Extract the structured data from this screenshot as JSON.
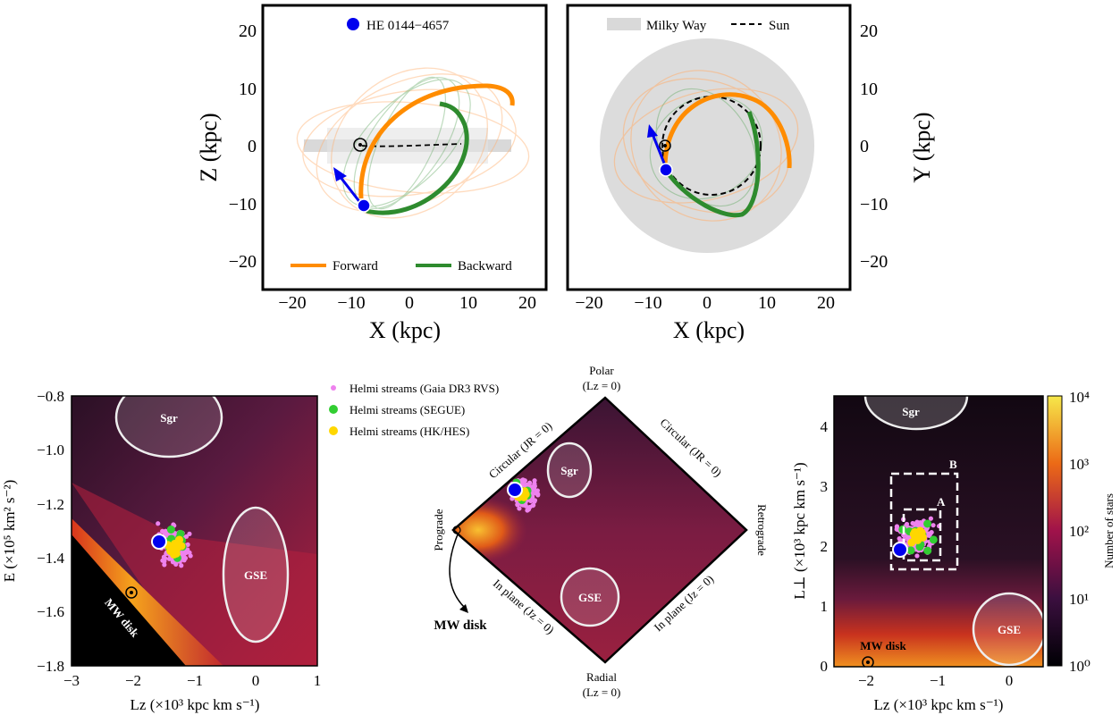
{
  "chart_data": [
    {
      "type": "line",
      "panel": "orbit-xz",
      "xlabel": "X (kpc)",
      "ylabel": "Z (kpc)",
      "xlim": [
        -25,
        25
      ],
      "ylim": [
        -25,
        25
      ],
      "xticks": [
        "−20",
        "−10",
        "0",
        "10",
        "20"
      ],
      "yticks": [
        "20",
        "10",
        "0",
        "−10",
        "−20"
      ],
      "legend_top": "HE 0144−4657",
      "series": [
        {
          "name": "Forward",
          "color": "#ff8c00"
        },
        {
          "name": "Backward",
          "color": "#2e8b2e"
        }
      ],
      "star": {
        "x": -7.5,
        "z": -10.3,
        "color": "#0000ee"
      }
    },
    {
      "type": "line",
      "panel": "orbit-xy",
      "xlabel": "X (kpc)",
      "ylabel": "Y (kpc)",
      "xlim": [
        -25,
        25
      ],
      "ylim": [
        -25,
        25
      ],
      "xticks": [
        "−20",
        "−10",
        "0",
        "10",
        "20"
      ],
      "yticks": [
        "20",
        "10",
        "0",
        "−10",
        "−20"
      ],
      "legend": [
        {
          "name": "Milky Way",
          "color": "#d9d9d9"
        },
        {
          "name": "Sun",
          "style": "dashed"
        }
      ],
      "star": {
        "x": -7.5,
        "y": -4.2,
        "color": "#0000ee"
      }
    },
    {
      "type": "heatmap",
      "panel": "E-Lz",
      "xlabel": "Lz (×10³ kpc km s⁻¹)",
      "ylabel": "E (×10⁵ km² s⁻²)",
      "xlim": [
        -3,
        1
      ],
      "ylim": [
        -1.8,
        -0.8
      ],
      "xticks": [
        "−3",
        "−2",
        "−1",
        "0",
        "1"
      ],
      "yticks": [
        "−0.8",
        "−1.0",
        "−1.2",
        "−1.4",
        "−1.6",
        "−1.8"
      ],
      "annotations": [
        "Sgr",
        "GSE",
        "MW disk"
      ],
      "star": {
        "x": -1.55,
        "y": -1.34
      },
      "sun": {
        "x": -2.0,
        "y": -1.53
      }
    },
    {
      "type": "heatmap",
      "panel": "action-diamond",
      "corner_labels": {
        "top": "Polar",
        "top_sub": "(Lz = 0)",
        "bottom": "Radial",
        "bottom_sub": "(Lz = 0)",
        "left": "Prograde",
        "right": "Retrograde"
      },
      "edge_labels": [
        "Circular (JR = 0)",
        "Circular (JR = 0)",
        "In plane (Jz = 0)",
        "In plane (Jz = 0)"
      ],
      "annotations": [
        "Sgr",
        "GSE",
        "MW disk"
      ],
      "legend": [
        {
          "name": "Helmi streams (Gaia DR3 RVS)",
          "color": "#ee82ee"
        },
        {
          "name": "Helmi streams (SEGUE)",
          "color": "#32cd32"
        },
        {
          "name": "Helmi streams (HK/HES)",
          "color": "#ffd700"
        }
      ]
    },
    {
      "type": "heatmap",
      "panel": "Lperp-Lz",
      "xlabel": "Lz (×10³ kpc km s⁻¹)",
      "ylabel": "L⊥ (×10³ kpc km s⁻¹)",
      "xlim": [
        -2.5,
        0.5
      ],
      "ylim": [
        0,
        4.5
      ],
      "xticks": [
        "−2",
        "−1",
        "0"
      ],
      "yticks": [
        "4",
        "3",
        "2",
        "1",
        "0"
      ],
      "annotations": [
        "Sgr",
        "GSE",
        "MW disk",
        "A",
        "B"
      ],
      "boxes": {
        "A": {
          "lz": [
            -1.6,
            -1.0
          ],
          "lperp": [
            1.75,
            2.6
          ]
        },
        "B": {
          "lz": [
            -1.75,
            -0.75
          ],
          "lperp": [
            1.6,
            3.2
          ]
        }
      },
      "star": {
        "x": -1.6,
        "y": 1.95
      },
      "sun": {
        "x": -2.0,
        "y": 0.05
      },
      "colorbar": {
        "label": "Number of stars",
        "scale": "log",
        "ticks": [
          "10⁰",
          "10¹",
          "10²",
          "10³",
          "10⁴"
        ],
        "range": [
          1,
          10000
        ]
      }
    }
  ]
}
